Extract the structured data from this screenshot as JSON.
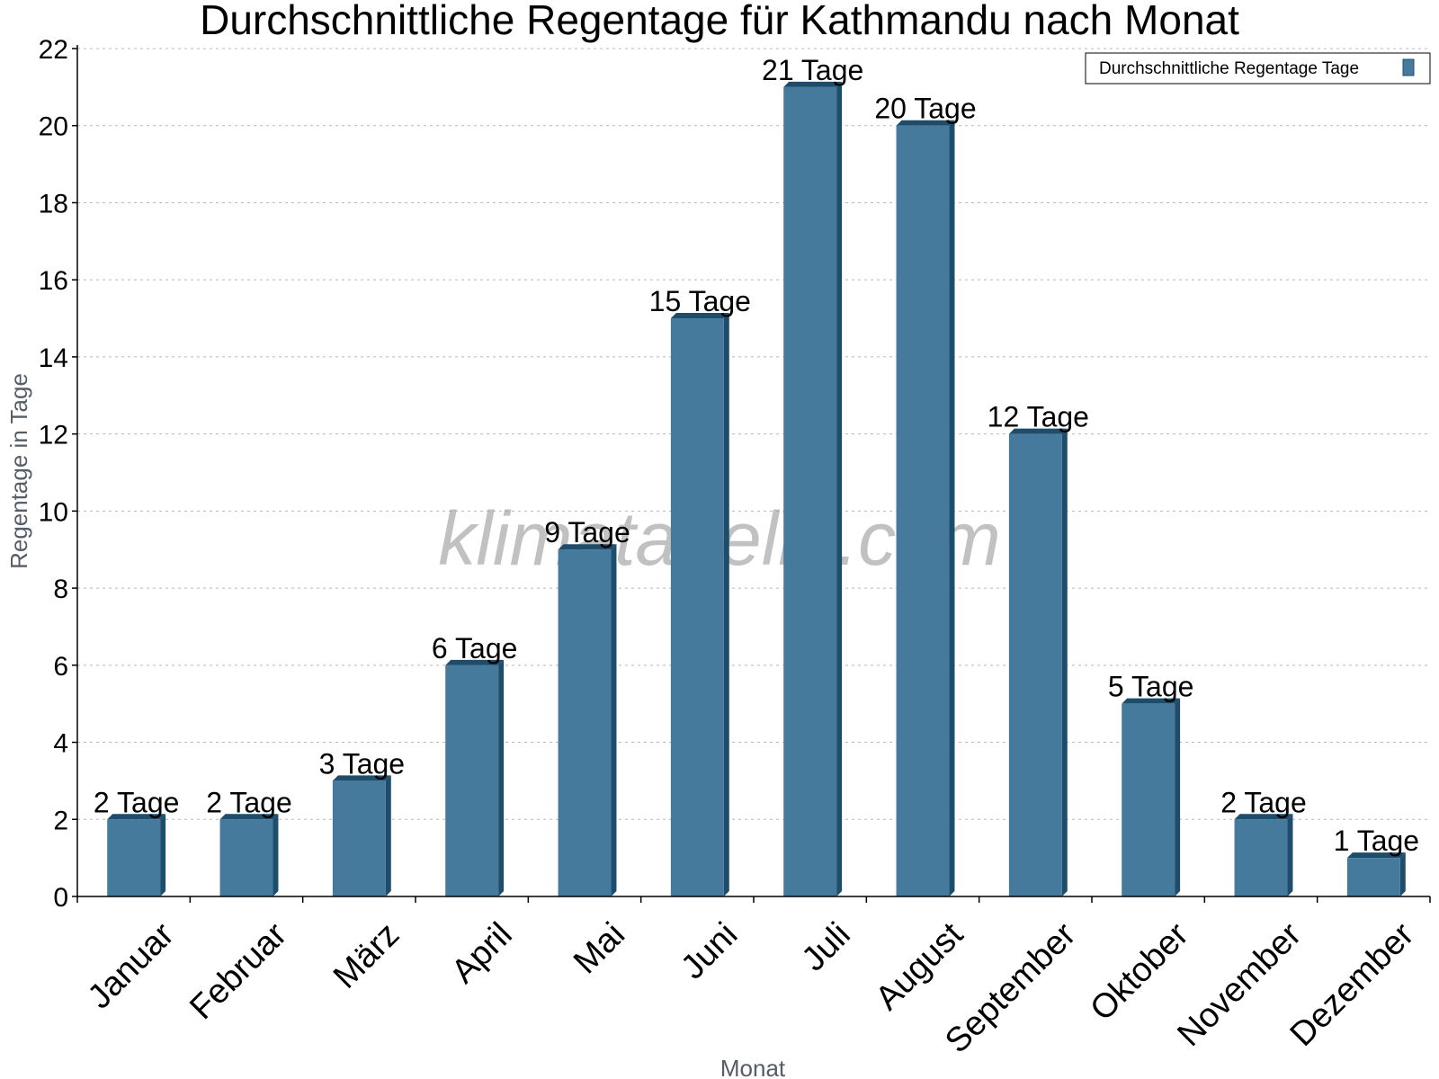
{
  "chart_data": {
    "type": "bar",
    "title": "Durchschnittliche Regentage für Kathmandu nach Monat",
    "xlabel": "Monat",
    "ylabel": "Regentage in Tage",
    "ylim": [
      0,
      22
    ],
    "yticks": [
      0,
      2,
      4,
      6,
      8,
      10,
      12,
      14,
      16,
      18,
      20,
      22
    ],
    "grid": true,
    "legend": {
      "position": "top-right",
      "entries": [
        "Durchschnittliche Regentage Tage"
      ]
    },
    "categories": [
      "Januar",
      "Februar",
      "März",
      "April",
      "Mai",
      "Juni",
      "Juli",
      "August",
      "September",
      "Oktober",
      "November",
      "Dezember"
    ],
    "series": [
      {
        "name": "Durchschnittliche Regentage Tage",
        "values": [
          2,
          2,
          3,
          6,
          9,
          15,
          21,
          20,
          12,
          5,
          2,
          1
        ],
        "labels": [
          "2 Tage",
          "2 Tage",
          "3 Tage",
          "6 Tage",
          "9 Tage",
          "15 Tage",
          "21 Tage",
          "20 Tage",
          "12 Tage",
          "5 Tage",
          "2 Tage",
          "1 Tage"
        ],
        "color": "#457a9c",
        "side_color": "#1e4d6b"
      }
    ],
    "watermark": "klimatabelle.com"
  }
}
